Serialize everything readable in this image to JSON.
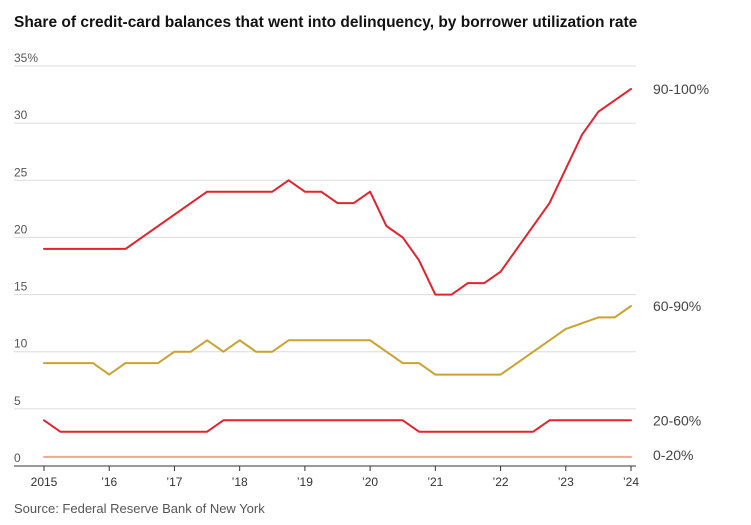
{
  "title": "Share of credit-card balances that went into delinquency, by borrower utilization rate",
  "source": "Source: Federal Reserve Bank of New York",
  "chart_data": {
    "type": "line",
    "title": "Share of credit-card balances that went into delinquency, by borrower utilization rate",
    "xlabel": "",
    "ylabel": "",
    "ylim": [
      0,
      35
    ],
    "xlim": [
      2015.0,
      2024.0
    ],
    "y_ticks": [
      {
        "value": 0,
        "label": "0"
      },
      {
        "value": 5,
        "label": "5"
      },
      {
        "value": 10,
        "label": "10"
      },
      {
        "value": 15,
        "label": "15"
      },
      {
        "value": 20,
        "label": "20"
      },
      {
        "value": 25,
        "label": "25"
      },
      {
        "value": 30,
        "label": "30"
      },
      {
        "value": 35,
        "label": "35%"
      }
    ],
    "x_ticks": [
      {
        "value": 2015,
        "label": "2015"
      },
      {
        "value": 2016,
        "label": "’16"
      },
      {
        "value": 2017,
        "label": "’17"
      },
      {
        "value": 2018,
        "label": "’18"
      },
      {
        "value": 2019,
        "label": "’19"
      },
      {
        "value": 2020,
        "label": "’20"
      },
      {
        "value": 2021,
        "label": "’21"
      },
      {
        "value": 2022,
        "label": "’22"
      },
      {
        "value": 2023,
        "label": "’23"
      },
      {
        "value": 2024,
        "label": "’24"
      }
    ],
    "grid": true,
    "series": [
      {
        "name": "90-100%",
        "color": "#e3232e",
        "x": [
          2015.0,
          2016.25,
          2017.5,
          2018.5,
          2018.75,
          2019.0,
          2019.25,
          2019.5,
          2019.75,
          2020.0,
          2020.25,
          2020.5,
          2020.75,
          2021.0,
          2021.25,
          2021.5,
          2021.75,
          2022.0,
          2022.75,
          2023.25,
          2023.5,
          2024.0
        ],
        "y": [
          19,
          19,
          24,
          24,
          25,
          24,
          24,
          23,
          23,
          24,
          21,
          20,
          18,
          15,
          15,
          16,
          16,
          17,
          23,
          29,
          31,
          33
        ]
      },
      {
        "name": "60-90%",
        "color": "#c9a230",
        "x": [
          2015.0,
          2015.75,
          2016.0,
          2016.25,
          2016.75,
          2017.0,
          2017.25,
          2017.5,
          2017.75,
          2018.0,
          2018.25,
          2018.5,
          2018.75,
          2020.0,
          2020.5,
          2020.75,
          2021.0,
          2022.0,
          2023.0,
          2023.5,
          2023.75,
          2024.0
        ],
        "y": [
          9,
          9,
          8,
          9,
          9,
          10,
          10,
          11,
          10,
          11,
          10,
          10,
          11,
          11,
          9,
          9,
          8,
          8,
          12,
          13,
          13,
          14
        ]
      },
      {
        "name": "20-60%",
        "color": "#e3232e",
        "x": [
          2015.0,
          2015.25,
          2017.5,
          2017.75,
          2020.5,
          2020.75,
          2022.5,
          2022.75,
          2024.0
        ],
        "y": [
          4,
          3,
          3,
          4,
          4,
          3,
          3,
          4,
          4
        ]
      },
      {
        "name": "0-20%",
        "color": "#f0a894",
        "x": [
          2015.0,
          2024.0
        ],
        "y": [
          0.8,
          0.8
        ]
      }
    ]
  }
}
